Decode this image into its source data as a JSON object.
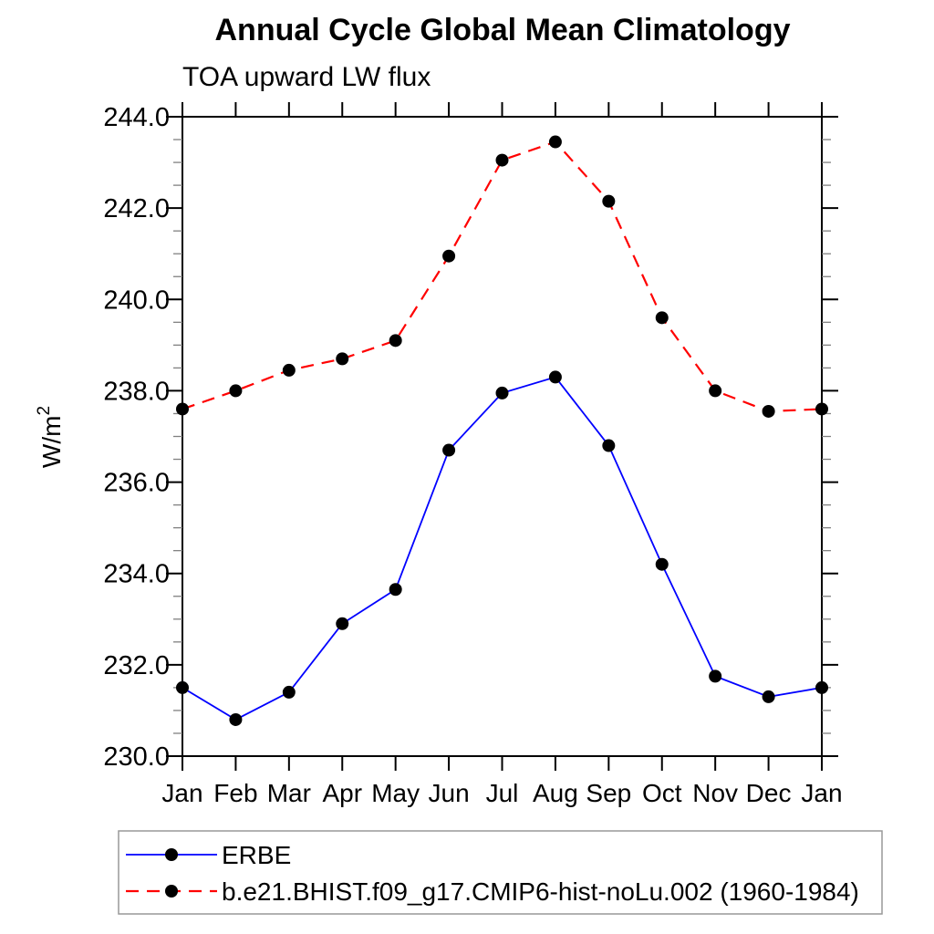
{
  "chart_data": {
    "type": "line",
    "title": "Annual Cycle Global Mean Climatology",
    "subtitle": "TOA upward LW flux",
    "xlabel": "",
    "ylabel": "W/m",
    "ylabel_superscript": "2",
    "categories": [
      "Jan",
      "Feb",
      "Mar",
      "Apr",
      "May",
      "Jun",
      "Jul",
      "Aug",
      "Sep",
      "Oct",
      "Nov",
      "Dec",
      "Jan"
    ],
    "series": [
      {
        "name": "ERBE",
        "color": "#0000ff",
        "line_style": "solid",
        "marker": "filled-circle",
        "marker_color": "#000000",
        "values": [
          231.5,
          230.8,
          231.4,
          232.9,
          233.65,
          236.7,
          237.95,
          238.3,
          236.8,
          234.2,
          231.75,
          231.3,
          231.5
        ]
      },
      {
        "name": "b.e21.BHIST.f09_g17.CMIP6-hist-noLu.002 (1960-1984)",
        "color": "#ff0000",
        "line_style": "dashed",
        "marker": "filled-circle",
        "marker_color": "#000000",
        "values": [
          237.6,
          238.0,
          238.45,
          238.7,
          239.1,
          240.95,
          243.05,
          243.45,
          242.15,
          239.6,
          238.0,
          237.55,
          237.6
        ]
      }
    ],
    "ylim": [
      230.0,
      244.0
    ],
    "ytick_interval_major": 2.0,
    "ytick_interval_minor": 0.5,
    "ytick_labels": [
      "230.0",
      "232.0",
      "234.0",
      "236.0",
      "238.0",
      "240.0",
      "242.0",
      "244.0"
    ],
    "grid": false,
    "legend_position": "bottom-left-outside",
    "axis_color": "#000000",
    "minor_tick_color": "#808080",
    "legend_border_color": "#999999",
    "background_color": "#ffffff"
  }
}
